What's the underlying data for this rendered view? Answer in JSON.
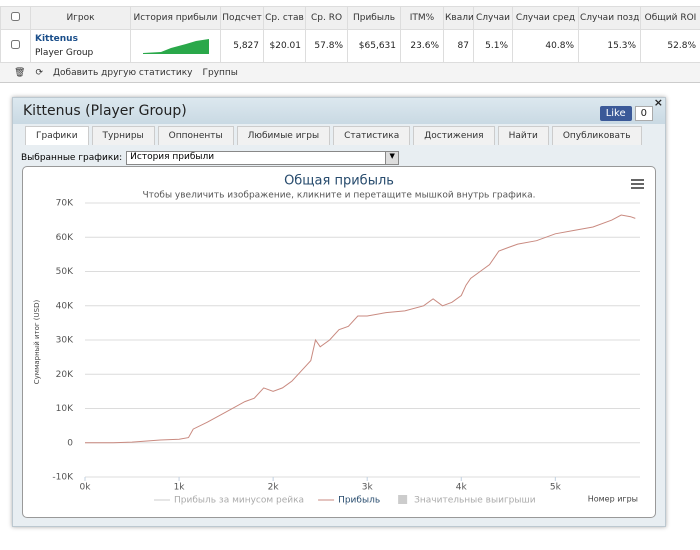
{
  "stats_table": {
    "headers": [
      "Игрок",
      "История прибыли",
      "Подсчет",
      "Ср. став",
      "Ср. RO",
      "Прибыль",
      "ITM%",
      "Квали",
      "Случаи",
      "Случаи сред",
      "Случаи позд",
      "Общий ROI"
    ],
    "row": {
      "player": "Kittenus",
      "group": "Player Group",
      "cells": [
        "5,827",
        "$20.01",
        "57.8%",
        "$65,631",
        "23.6%",
        "87",
        "5.1%",
        "40.8%",
        "15.3%",
        "52.8%"
      ]
    }
  },
  "toolbar": {
    "add_stat": "Добавить другую статистику",
    "groups": "Группы"
  },
  "panel": {
    "title": "Kittenus (Player Group)",
    "like": "Like",
    "like_count": "0",
    "tabs": [
      "Графики",
      "Турниры",
      "Оппоненты",
      "Любимые игры",
      "Статистика",
      "Достижения",
      "Найти",
      "Опубликовать"
    ],
    "selector_label": "Выбранные графики:",
    "selector_value": "История прибыли"
  },
  "chart_data": {
    "type": "line",
    "title": "Общая прибыль",
    "subtitle": "Чтобы увеличить изображение, кликните и перетащите мышкой внутрь графика.",
    "x_label": "Номер игры",
    "y_label": "Суммарный итог (USD)",
    "x": [
      0,
      300,
      500,
      800,
      1000,
      1100,
      1150,
      1300,
      1500,
      1700,
      1800,
      1900,
      2000,
      2100,
      2200,
      2300,
      2400,
      2450,
      2500,
      2600,
      2700,
      2800,
      2900,
      3000,
      3200,
      3400,
      3600,
      3700,
      3800,
      3900,
      4000,
      4050,
      4100,
      4200,
      4300,
      4400,
      4500,
      4600,
      4800,
      5000,
      5200,
      5400,
      5600,
      5700,
      5800,
      5850
    ],
    "series": [
      {
        "name": "Прибыль за минусом рейка",
        "color": "#cccccc",
        "visible": false
      },
      {
        "name": "Прибыль",
        "color": "#c98a80",
        "visible": true,
        "values": [
          0,
          0,
          200,
          800,
          1000,
          1500,
          4000,
          6000,
          9000,
          12000,
          13000,
          16000,
          15000,
          16000,
          18000,
          21000,
          24000,
          30000,
          28000,
          30000,
          33000,
          34000,
          37000,
          37000,
          38000,
          38500,
          40000,
          42000,
          40000,
          41000,
          43000,
          46000,
          48000,
          50000,
          52000,
          56000,
          57000,
          58000,
          59000,
          61000,
          62000,
          63000,
          65000,
          66500,
          66000,
          65500
        ]
      },
      {
        "name": "Значительные выигрыши",
        "color": "#cccccc",
        "visible": false,
        "marker": "square"
      }
    ],
    "xlim": [
      0,
      5900
    ],
    "xticks": [
      {
        "value": 0,
        "label": "0k"
      },
      {
        "value": 1000,
        "label": "1k"
      },
      {
        "value": 2000,
        "label": "2k"
      },
      {
        "value": 3000,
        "label": "3k"
      },
      {
        "value": 4000,
        "label": "4k"
      },
      {
        "value": 5000,
        "label": "5k"
      }
    ],
    "ylim": [
      -10000,
      70000
    ],
    "yticks": [
      {
        "value": -10000,
        "label": "-10K"
      },
      0,
      {
        "value": 10000,
        "label": "10K"
      },
      {
        "value": 20000,
        "label": "20K"
      },
      {
        "value": 30000,
        "label": "30K"
      },
      {
        "value": 40000,
        "label": "40K"
      },
      {
        "value": 50000,
        "label": "50K"
      },
      {
        "value": 60000,
        "label": "60K"
      },
      {
        "value": 70000,
        "label": "70K"
      }
    ],
    "grid": true
  }
}
